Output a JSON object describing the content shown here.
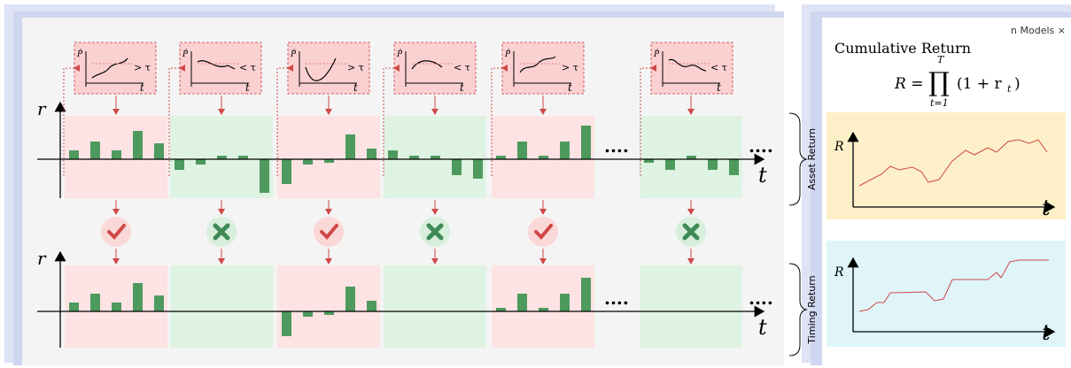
{
  "left": {
    "axis_value_label": "r",
    "axis_time_label": "t",
    "ellipsis": "....",
    "mini_charts": [
      {
        "y_label": "P̂",
        "x_label": "t",
        "condition": "> τ"
      },
      {
        "y_label": "P̂",
        "x_label": "t",
        "condition": "< τ"
      },
      {
        "y_label": "P̂",
        "x_label": "t",
        "condition": "> τ"
      },
      {
        "y_label": "P̂",
        "x_label": "t",
        "condition": "< τ"
      },
      {
        "y_label": "P̂",
        "x_label": "t",
        "condition": "> τ"
      },
      {
        "y_label": "P̂",
        "x_label": "t",
        "condition": "< τ"
      }
    ]
  },
  "right": {
    "tab": "n Models ×",
    "title": "Cumulative Return",
    "formula": {
      "lhs": "R =",
      "operator": "∏",
      "upper": "T",
      "lower": "t=1",
      "body": "(1 + r",
      "subscript": "t",
      "close": ")"
    },
    "asset_label": "Asset Return",
    "timing_label": "Timing Return",
    "chart_y_label": "R",
    "chart_x_label": "t"
  }
}
